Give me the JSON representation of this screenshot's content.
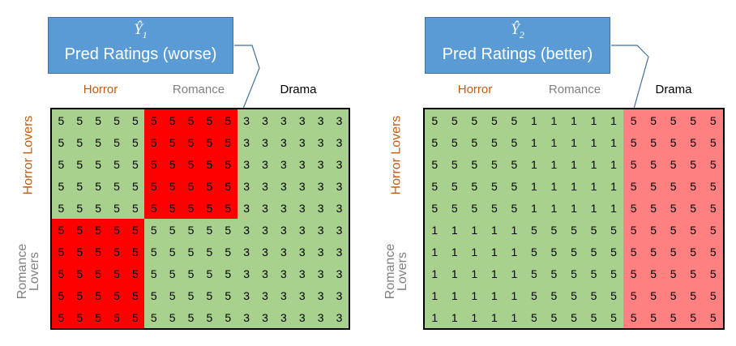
{
  "colors": {
    "callout_fill": "#5b9bd5",
    "good": "#a9d18e",
    "bad_strong": "#ff0000",
    "bad_light": "#ff8080",
    "horror_text": "#c55a11",
    "romance_text": "#808080",
    "drama_text": "#000000"
  },
  "panels": [
    {
      "callout": {
        "symbol": "Ŷ",
        "subscript": "1",
        "title": "Pred Ratings (worse)"
      },
      "columns": [
        {
          "label": "Horror",
          "tone": "horror"
        },
        {
          "label": "Romance",
          "tone": "romance"
        },
        {
          "label": "Drama",
          "tone": "drama"
        }
      ],
      "rows": [
        {
          "label": "Horror Lovers",
          "tone": "horror"
        },
        {
          "label": "Romance Lovers",
          "tone": "romance"
        }
      ],
      "column_block_sizes": [
        5,
        5,
        6
      ],
      "row_block_sizes": [
        5,
        5
      ],
      "blocks": [
        [
          {
            "value": "5",
            "fill": "good"
          },
          {
            "value": "5",
            "fill": "bad_strong"
          },
          {
            "value": "3",
            "fill": "good"
          }
        ],
        [
          {
            "value": "5",
            "fill": "bad_strong"
          },
          {
            "value": "5",
            "fill": "good"
          },
          {
            "value": "3",
            "fill": "good"
          }
        ]
      ]
    },
    {
      "callout": {
        "symbol": "Ŷ",
        "subscript": "2",
        "title": "Pred Ratings (better)"
      },
      "columns": [
        {
          "label": "Horror",
          "tone": "horror"
        },
        {
          "label": "Romance",
          "tone": "romance"
        },
        {
          "label": "Drama",
          "tone": "drama"
        }
      ],
      "rows": [
        {
          "label": "Horror Lovers",
          "tone": "horror"
        },
        {
          "label": "Romance Lovers",
          "tone": "romance"
        }
      ],
      "column_block_sizes": [
        5,
        5,
        5
      ],
      "row_block_sizes": [
        5,
        5
      ],
      "blocks": [
        [
          {
            "value": "5",
            "fill": "good"
          },
          {
            "value": "1",
            "fill": "good"
          },
          {
            "value": "5",
            "fill": "bad_light"
          }
        ],
        [
          {
            "value": "1",
            "fill": "good"
          },
          {
            "value": "5",
            "fill": "good"
          },
          {
            "value": "5",
            "fill": "bad_light"
          }
        ]
      ]
    }
  ]
}
